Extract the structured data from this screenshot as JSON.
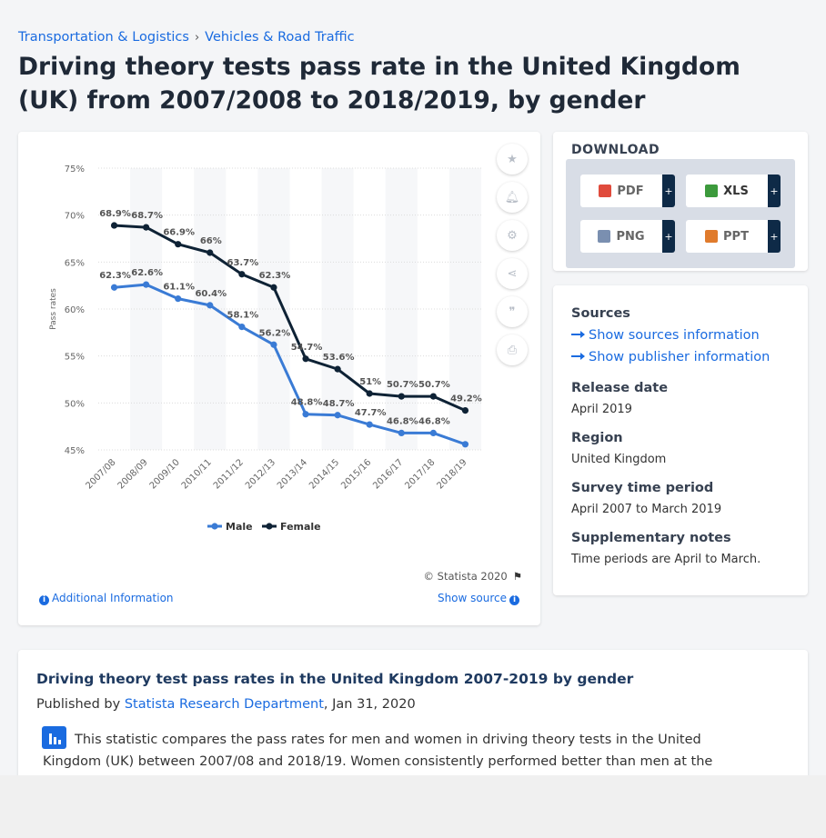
{
  "breadcrumb": {
    "items": [
      "Transportation & Logistics",
      "Vehicles & Road Traffic"
    ],
    "separator": "›"
  },
  "page_title": "Driving theory tests pass rate in the United Kingdom (UK) from 2007/2008 to 2018/2019, by gender",
  "chart_data": {
    "type": "line",
    "title": "",
    "xlabel": "",
    "ylabel": "Pass rates",
    "categories": [
      "2007/08",
      "2008/09",
      "2009/10",
      "2010/11",
      "2011/12",
      "2012/13",
      "2013/14",
      "2014/15",
      "2015/16",
      "2016/17",
      "2017/18",
      "2018/19"
    ],
    "series": [
      {
        "name": "Male",
        "color": "#3a7bd5",
        "values": [
          62.3,
          62.6,
          61.1,
          60.4,
          58.1,
          56.2,
          48.8,
          48.7,
          47.7,
          46.8,
          46.8,
          45.6
        ],
        "labels": [
          "62.3%",
          "62.6%",
          "61.1%",
          "60.4%",
          "58.1%",
          "56.2%",
          "48.8%",
          "48.7%",
          "47.7%",
          "46.8%",
          "46.8%",
          ""
        ]
      },
      {
        "name": "Female",
        "color": "#0e2235",
        "values": [
          68.9,
          68.7,
          66.9,
          66,
          63.7,
          62.3,
          54.7,
          53.6,
          51,
          50.7,
          50.7,
          49.2
        ],
        "labels": [
          "68.9%",
          "68.7%",
          "66.9%",
          "66%",
          "63.7%",
          "62.3%",
          "54.7%",
          "53.6%",
          "51%",
          "50.7%",
          "50.7%",
          "49.2%"
        ]
      }
    ],
    "yticks": [
      45,
      50,
      55,
      60,
      65,
      70,
      75
    ],
    "ytick_labels": [
      "45%",
      "50%",
      "55%",
      "60%",
      "65%",
      "70%",
      "75%"
    ],
    "ylim": [
      45,
      75
    ],
    "grid": true,
    "legend_position": "bottom"
  },
  "chart_footer": {
    "copyright": "© Statista 2020",
    "additional_info": "Additional Information",
    "show_source": "Show source"
  },
  "tools": [
    "star-icon",
    "bell-icon",
    "gear-icon",
    "share-icon",
    "quote-icon",
    "print-icon"
  ],
  "download": {
    "title": "DOWNLOAD",
    "buttons": [
      {
        "label": "PDF",
        "color": "#e04b3c"
      },
      {
        "label": "XLS",
        "color": "#3c9a3c"
      },
      {
        "label": "PNG",
        "color": "#7a8fb0"
      },
      {
        "label": "PPT",
        "color": "#e07b2c"
      }
    ],
    "plus": "+"
  },
  "meta": {
    "sources_heading": "Sources",
    "show_sources": "Show sources information",
    "show_publisher": "Show publisher information",
    "release_heading": "Release date",
    "release_value": "April 2019",
    "region_heading": "Region",
    "region_value": "United Kingdom",
    "survey_heading": "Survey time period",
    "survey_value": "April 2007 to March 2019",
    "notes_heading": "Supplementary notes",
    "notes_value": "Time periods are April to March."
  },
  "description": {
    "title": "Driving theory test pass rates in the United Kingdom 2007-2019 by gender",
    "published_prefix": "Published by",
    "publisher": "Statista Research Department",
    "date": ", Jan 31, 2020",
    "text": "This statistic compares the pass rates for men and women in driving theory tests in the United Kingdom (UK) between 2007/08 and 2018/19. Women consistently performed better than men at the theory tests by"
  }
}
